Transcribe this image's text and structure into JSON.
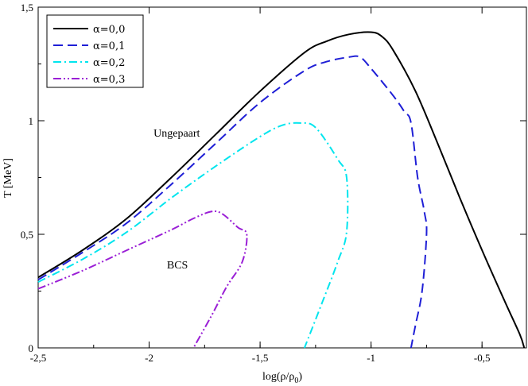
{
  "chart_data": {
    "type": "line",
    "title": "",
    "xlabel": "log(ρ/ρ",
    "xlabel_sub": "0",
    "xlabel_close": ")",
    "ylabel": "T [MeV]",
    "xlim": [
      -2.5,
      -0.3
    ],
    "ylim": [
      0,
      1.5
    ],
    "x_ticks": [
      -2.5,
      -2,
      -1.5,
      -1,
      -0.5
    ],
    "x_tick_labels": [
      "-2,5",
      "-2",
      "-1,5",
      "-1",
      "-0,5"
    ],
    "y_ticks": [
      0,
      0.5,
      1,
      1.5
    ],
    "y_tick_labels": [
      "0",
      "0,5",
      "1",
      "1,5"
    ],
    "grid": false,
    "legend_position": "top-left",
    "annotations": [
      {
        "text": "Ungepaart",
        "x": -1.98,
        "y": 0.93
      },
      {
        "text": "BCS",
        "x": -1.92,
        "y": 0.35
      }
    ],
    "series": [
      {
        "name": "α=0,0",
        "color": "#000000",
        "dash": "solid",
        "points": [
          [
            -2.5,
            0.31
          ],
          [
            -2.3,
            0.43
          ],
          [
            -2.1,
            0.57
          ],
          [
            -1.9,
            0.75
          ],
          [
            -1.7,
            0.94
          ],
          [
            -1.5,
            1.13
          ],
          [
            -1.3,
            1.3
          ],
          [
            -1.2,
            1.35
          ],
          [
            -1.1,
            1.38
          ],
          [
            -1.0,
            1.39
          ],
          [
            -0.95,
            1.37
          ],
          [
            -0.9,
            1.31
          ],
          [
            -0.8,
            1.13
          ],
          [
            -0.7,
            0.9
          ],
          [
            -0.6,
            0.66
          ],
          [
            -0.5,
            0.43
          ],
          [
            -0.4,
            0.21
          ],
          [
            -0.33,
            0.06
          ],
          [
            -0.31,
            0.0
          ]
        ]
      },
      {
        "name": "α=0,1",
        "color": "#1f1fd6",
        "dash": "dashed",
        "points": [
          [
            -2.5,
            0.3
          ],
          [
            -2.3,
            0.42
          ],
          [
            -2.1,
            0.55
          ],
          [
            -1.9,
            0.72
          ],
          [
            -1.7,
            0.9
          ],
          [
            -1.5,
            1.08
          ],
          [
            -1.3,
            1.22
          ],
          [
            -1.2,
            1.26
          ],
          [
            -1.1,
            1.28
          ],
          [
            -1.05,
            1.28
          ],
          [
            -1.0,
            1.23
          ],
          [
            -0.9,
            1.11
          ],
          [
            -0.85,
            1.04
          ],
          [
            -0.82,
            0.99
          ],
          [
            -0.79,
            0.75
          ],
          [
            -0.76,
            0.6
          ],
          [
            -0.75,
            0.5
          ],
          [
            -0.77,
            0.25
          ],
          [
            -0.8,
            0.1
          ],
          [
            -0.82,
            0.0
          ]
        ]
      },
      {
        "name": "α=0,2",
        "color": "#00e5ee",
        "dash": "dashdot",
        "points": [
          [
            -2.5,
            0.29
          ],
          [
            -2.3,
            0.39
          ],
          [
            -2.1,
            0.51
          ],
          [
            -1.9,
            0.66
          ],
          [
            -1.7,
            0.8
          ],
          [
            -1.5,
            0.93
          ],
          [
            -1.4,
            0.98
          ],
          [
            -1.32,
            0.99
          ],
          [
            -1.25,
            0.97
          ],
          [
            -1.15,
            0.83
          ],
          [
            -1.11,
            0.75
          ],
          [
            -1.11,
            0.51
          ],
          [
            -1.15,
            0.38
          ],
          [
            -1.22,
            0.2
          ],
          [
            -1.3,
            0.0
          ]
        ]
      },
      {
        "name": "α=0,3",
        "color": "#9a1fd6",
        "dash": "dashdotdot",
        "points": [
          [
            -2.5,
            0.26
          ],
          [
            -2.3,
            0.34
          ],
          [
            -2.1,
            0.43
          ],
          [
            -1.9,
            0.52
          ],
          [
            -1.8,
            0.57
          ],
          [
            -1.72,
            0.6
          ],
          [
            -1.67,
            0.59
          ],
          [
            -1.6,
            0.53
          ],
          [
            -1.56,
            0.5
          ],
          [
            -1.58,
            0.38
          ],
          [
            -1.65,
            0.27
          ],
          [
            -1.72,
            0.14
          ],
          [
            -1.8,
            0.0
          ]
        ]
      }
    ]
  }
}
